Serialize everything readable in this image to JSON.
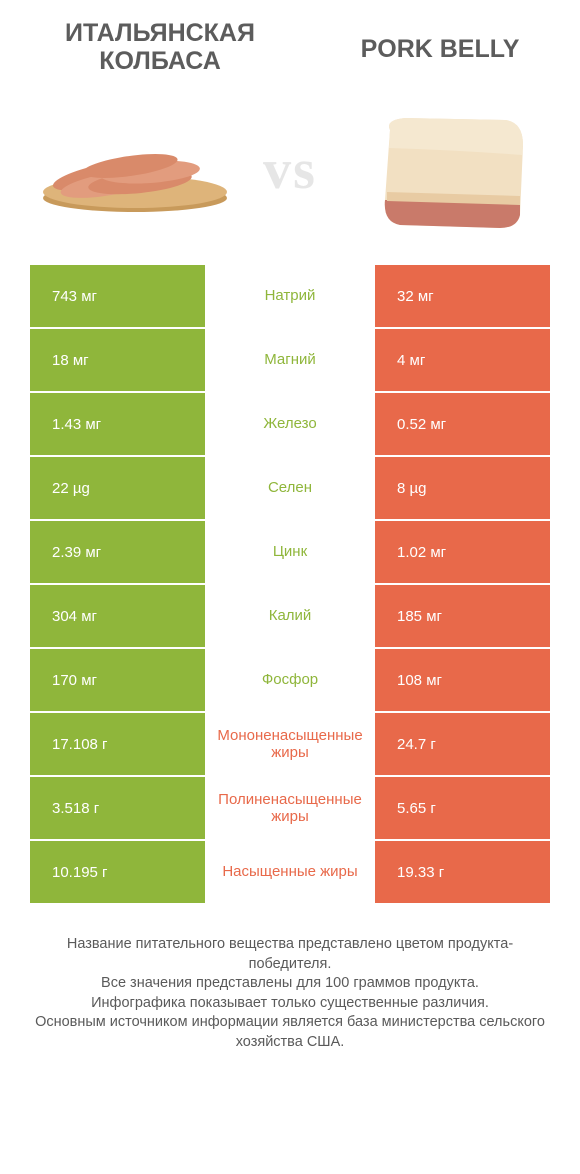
{
  "colors": {
    "green": "#8fb63b",
    "orange": "#e8694a",
    "label_green": "#8fb63b",
    "label_orange": "#e8694a",
    "title": "#5c5c5c",
    "vs": "#e6e6e6"
  },
  "header": {
    "left_title": "Итальянская колбаса",
    "right_title": "Pork belly",
    "vs_text": "vs"
  },
  "rows": [
    {
      "left": "743 мг",
      "label": "Натрий",
      "right": "32 мг",
      "winner": "left"
    },
    {
      "left": "18 мг",
      "label": "Магний",
      "right": "4 мг",
      "winner": "left"
    },
    {
      "left": "1.43 мг",
      "label": "Железо",
      "right": "0.52 мг",
      "winner": "left"
    },
    {
      "left": "22 µg",
      "label": "Селен",
      "right": "8 µg",
      "winner": "left"
    },
    {
      "left": "2.39 мг",
      "label": "Цинк",
      "right": "1.02 мг",
      "winner": "left"
    },
    {
      "left": "304 мг",
      "label": "Калий",
      "right": "185 мг",
      "winner": "left"
    },
    {
      "left": "170 мг",
      "label": "Фосфор",
      "right": "108 мг",
      "winner": "left"
    },
    {
      "left": "17.108 г",
      "label": "Мононенасыщенные жиры",
      "right": "24.7 г",
      "winner": "right"
    },
    {
      "left": "3.518 г",
      "label": "Полиненасыщенные жиры",
      "right": "5.65 г",
      "winner": "right"
    },
    {
      "left": "10.195 г",
      "label": "Насыщенные жиры",
      "right": "19.33 г",
      "winner": "right"
    }
  ],
  "footer": {
    "line1": "Название питательного вещества представлено цветом продукта-победителя.",
    "line2": "Все значения представлены для 100 граммов продукта.",
    "line3": "Инфографика показывает только существенные различия.",
    "line4": "Основным источником информации является база министерства сельского хозяйства США."
  }
}
